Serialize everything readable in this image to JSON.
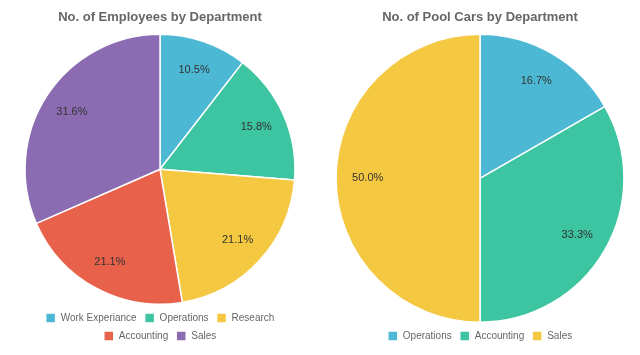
{
  "chart_data": [
    {
      "type": "pie",
      "title": "No. of Employees by Department",
      "categories": [
        "Work Experiance",
        "Operations",
        "Research",
        "Accounting",
        "Sales"
      ],
      "values": [
        10.5,
        15.8,
        21.1,
        21.1,
        31.6
      ],
      "value_labels": [
        "10.5%",
        "15.8%",
        "21.1%",
        "21.1%",
        "31.6%"
      ],
      "colors": [
        "#4DB8D4",
        "#3DC4A0",
        "#F5C842",
        "#E8614A",
        "#8B6BB1"
      ],
      "legend": "bottom",
      "data_labels": true
    },
    {
      "type": "pie",
      "title": "No. of Pool Cars by Department",
      "categories": [
        "Operations",
        "Accounting",
        "Sales"
      ],
      "values": [
        16.7,
        33.3,
        50.0
      ],
      "value_labels": [
        "16.7%",
        "33.3%",
        "50.0%"
      ],
      "colors": [
        "#4DB8D4",
        "#3DC4A0",
        "#F5C842"
      ],
      "legend": "bottom",
      "data_labels": true
    }
  ]
}
